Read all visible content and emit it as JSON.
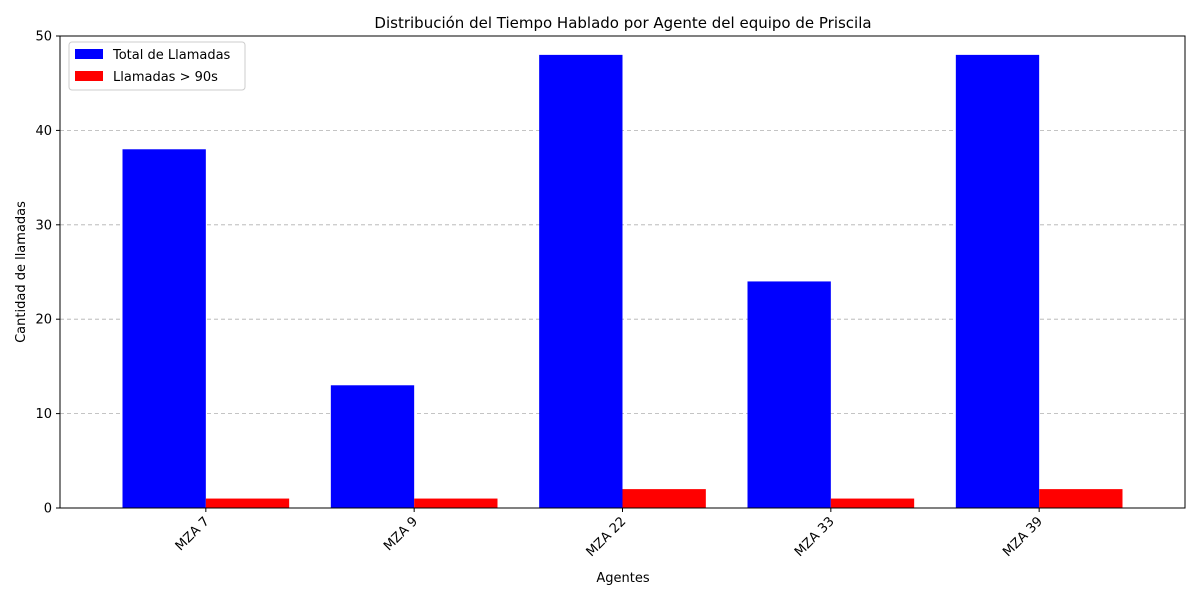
{
  "chart_data": {
    "type": "bar",
    "title": "Distribución del Tiempo Hablado por Agente del equipo de Priscila",
    "xlabel": "Agentes",
    "ylabel": "Cantidad de llamadas",
    "categories": [
      "MZA 7",
      "MZA 9",
      "MZA 22",
      "MZA 33",
      "MZA 39"
    ],
    "series": [
      {
        "name": "Total de Llamadas",
        "color": "#0000ff",
        "values": [
          38,
          13,
          48,
          24,
          48
        ]
      },
      {
        "name": "Llamadas > 90s",
        "color": "#ff0000",
        "values": [
          1,
          1,
          2,
          1,
          2
        ]
      }
    ],
    "ylim": [
      0,
      50
    ],
    "yticks": [
      "0",
      "10",
      "20",
      "30",
      "40",
      "50"
    ],
    "grid": "y-dashed",
    "legend_position": "top-left"
  }
}
